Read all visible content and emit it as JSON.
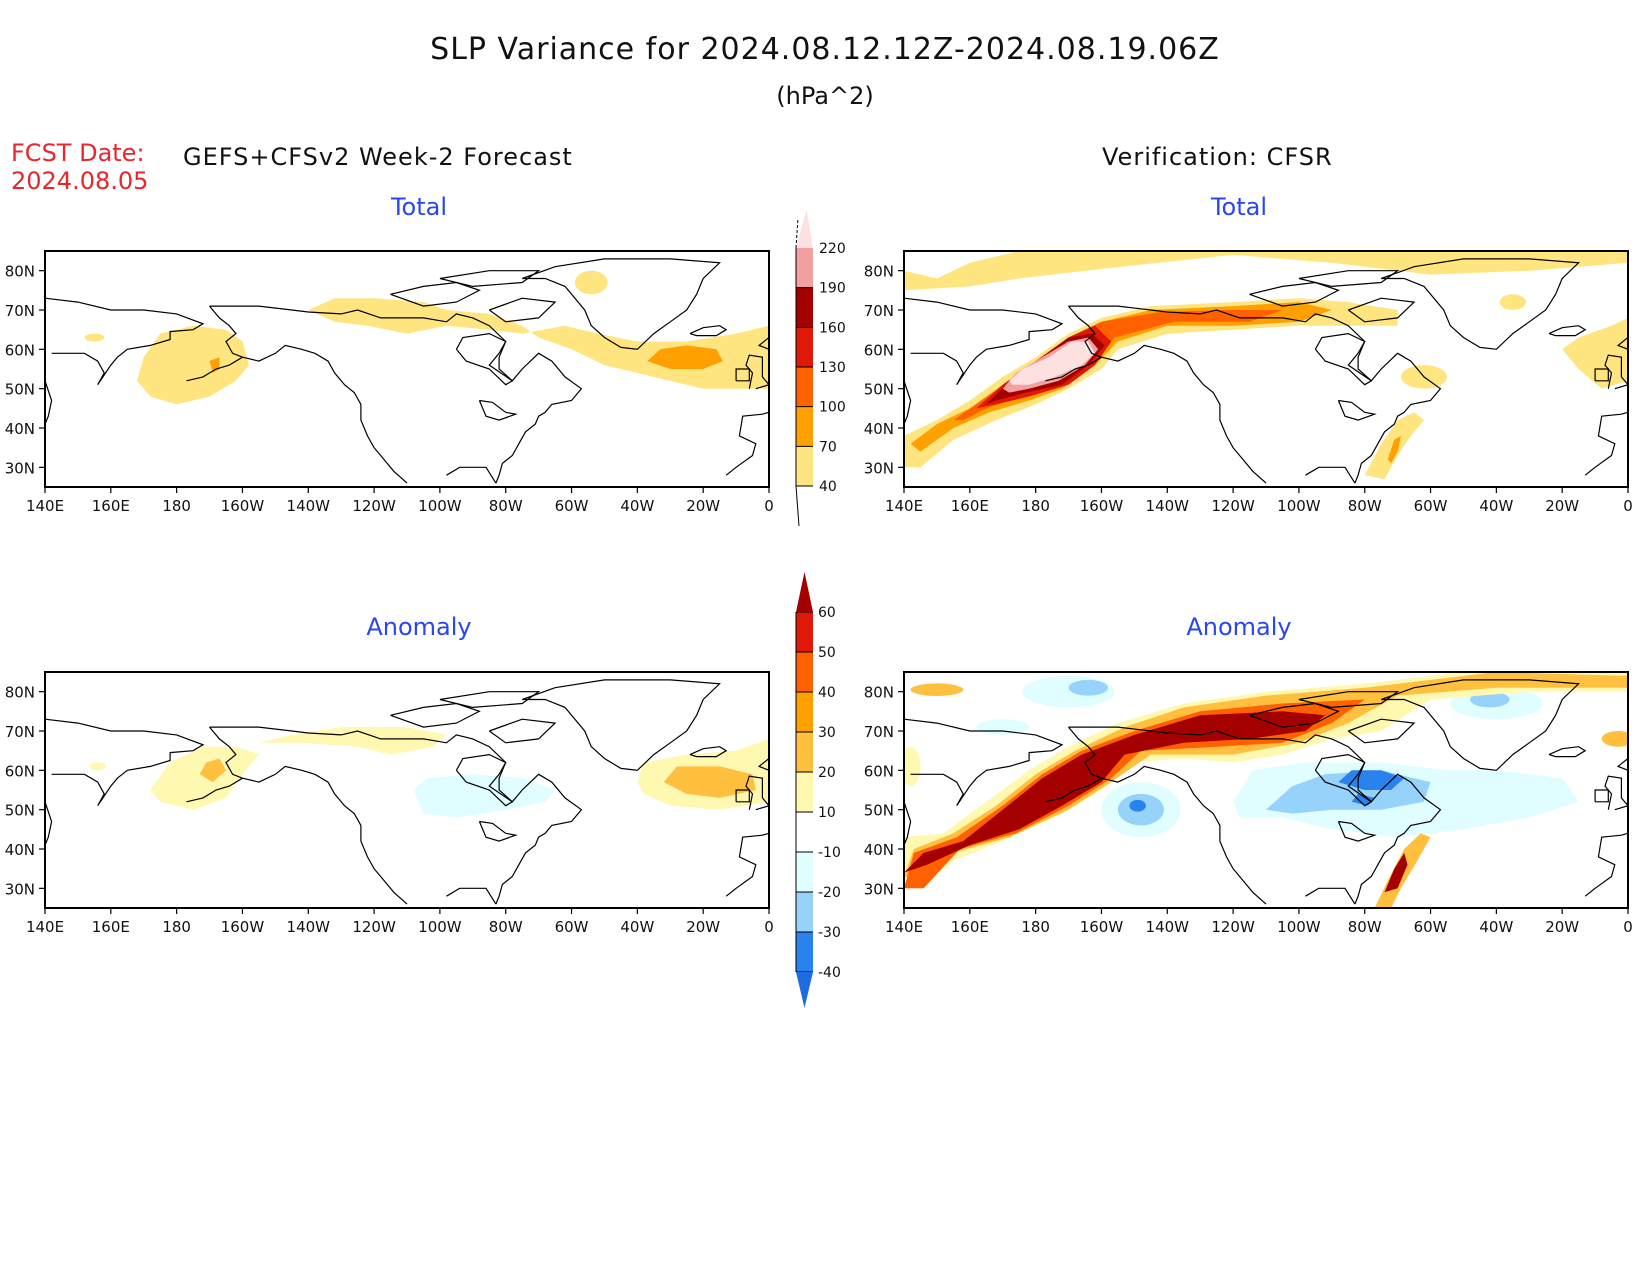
{
  "header": {
    "title": "SLP Variance for 2024.08.12.12Z-2024.08.19.06Z",
    "units": "(hPa^2)",
    "fcst_label": "FCST Date:",
    "fcst_date": "2024.08.05",
    "left_title": "GEFS+CFSv2 Week-2 Forecast",
    "right_title": "Verification: CFSR"
  },
  "panels": {
    "total_label": "Total",
    "anomaly_label": "Anomaly"
  },
  "colors": {
    "title_red": "#e8262b",
    "panel_blue": "#2946f0"
  },
  "chart_data": [
    {
      "type": "heatmap",
      "name": "forecast-total",
      "title": "Total",
      "column": "GEFS+CFSv2 Week-2 Forecast",
      "x_ticks": [
        "140E",
        "160E",
        "180",
        "160W",
        "140W",
        "120W",
        "100W",
        "80W",
        "60W",
        "40W",
        "20W",
        "0"
      ],
      "y_ticks": [
        "30N",
        "40N",
        "50N",
        "60N",
        "70N",
        "80N"
      ],
      "xlim": [
        "140E",
        "0"
      ],
      "ylim": [
        "25N",
        "85N"
      ],
      "features": [
        {
          "region": "Bering Sea / North Pacific",
          "level": "40-70"
        },
        {
          "region": "Near 170W 57N",
          "level": "70-100"
        },
        {
          "region": "Canadian Arctic / Hudson Bay band",
          "level": "40-70"
        },
        {
          "region": "Greenland interior",
          "level": "40-70"
        },
        {
          "region": "North Atlantic",
          "level": "40-70"
        },
        {
          "region": "Near 25W 58N",
          "level": "70-100"
        }
      ]
    },
    {
      "type": "heatmap",
      "name": "verification-total",
      "title": "Total",
      "column": "Verification: CFSR",
      "x_ticks": [
        "140E",
        "160E",
        "180",
        "160W",
        "140W",
        "120W",
        "100W",
        "80W",
        "60W",
        "40W",
        "20W",
        "0"
      ],
      "y_ticks": [
        "30N",
        "40N",
        "50N",
        "60N",
        "70N",
        "80N"
      ],
      "xlim": [
        "140E",
        "0"
      ],
      "ylim": [
        "25N",
        "85N"
      ],
      "features": [
        {
          "region": "NW Pacific to Alaska storm track",
          "level": ">220 core near 175W 55N"
        },
        {
          "region": "Arctic band to Canadian Archipelago",
          "level": "100-130"
        },
        {
          "region": "Western Atlantic near 65W 35N",
          "level": "70-130"
        },
        {
          "region": "North Atlantic patches",
          "level": "40-70"
        }
      ]
    },
    {
      "type": "heatmap",
      "name": "forecast-anomaly",
      "title": "Anomaly",
      "column": "GEFS+CFSv2 Week-2 Forecast",
      "x_ticks": [
        "140E",
        "160E",
        "180",
        "160W",
        "140W",
        "120W",
        "100W",
        "80W",
        "60W",
        "40W",
        "20W",
        "0"
      ],
      "y_ticks": [
        "30N",
        "40N",
        "50N",
        "60N",
        "70N",
        "80N"
      ],
      "xlim": [
        "140E",
        "0"
      ],
      "ylim": [
        "25N",
        "85N"
      ],
      "features": [
        {
          "region": "Bering Sea",
          "level": "10-20"
        },
        {
          "region": "Near 170W 60N",
          "level": "20-30"
        },
        {
          "region": "Canadian Arctic",
          "level": "10-20"
        },
        {
          "region": "Hudson Bay / Quebec",
          "level": "-10 to -20"
        },
        {
          "region": "NE Atlantic near 25W 57N",
          "level": "20-30"
        }
      ]
    },
    {
      "type": "heatmap",
      "name": "verification-anomaly",
      "title": "Anomaly",
      "column": "Verification: CFSR",
      "x_ticks": [
        "140E",
        "160E",
        "180",
        "160W",
        "140W",
        "120W",
        "100W",
        "80W",
        "60W",
        "40W",
        "20W",
        "0"
      ],
      "y_ticks": [
        "30N",
        "40N",
        "50N",
        "60N",
        "70N",
        "80N"
      ],
      "xlim": [
        "140E",
        "0"
      ],
      "ylim": [
        "25N",
        "85N"
      ],
      "features": [
        {
          "region": "NW Pacific to Arctic band",
          "level": ">60"
        },
        {
          "region": "Gulf of Alaska near 150W 50N",
          "level": "-30 to -40"
        },
        {
          "region": "Hudson Bay",
          "level": "-30 to -40"
        },
        {
          "region": "Western Atlantic near 65W 35N",
          "level": ">60"
        }
      ]
    }
  ],
  "colorbars": {
    "total": {
      "labels": [
        "40",
        "70",
        "100",
        "130",
        "160",
        "190",
        "220"
      ],
      "colors": [
        "#ffe57f",
        "#ffa000",
        "#ff6000",
        "#e01808",
        "#a50000",
        "#f2a0a0",
        "#fde0e0"
      ]
    },
    "anomaly": {
      "labels": [
        "-40",
        "-30",
        "-20",
        "-10",
        "10",
        "20",
        "30",
        "40",
        "50",
        "60"
      ],
      "colors": [
        "#1f6be0",
        "#2a82ee",
        "#96d2fa",
        "#e0fdff",
        "#ffffff",
        "#fff8b0",
        "#ffc040",
        "#ffa000",
        "#ff6000",
        "#e01808",
        "#a50000"
      ]
    }
  }
}
